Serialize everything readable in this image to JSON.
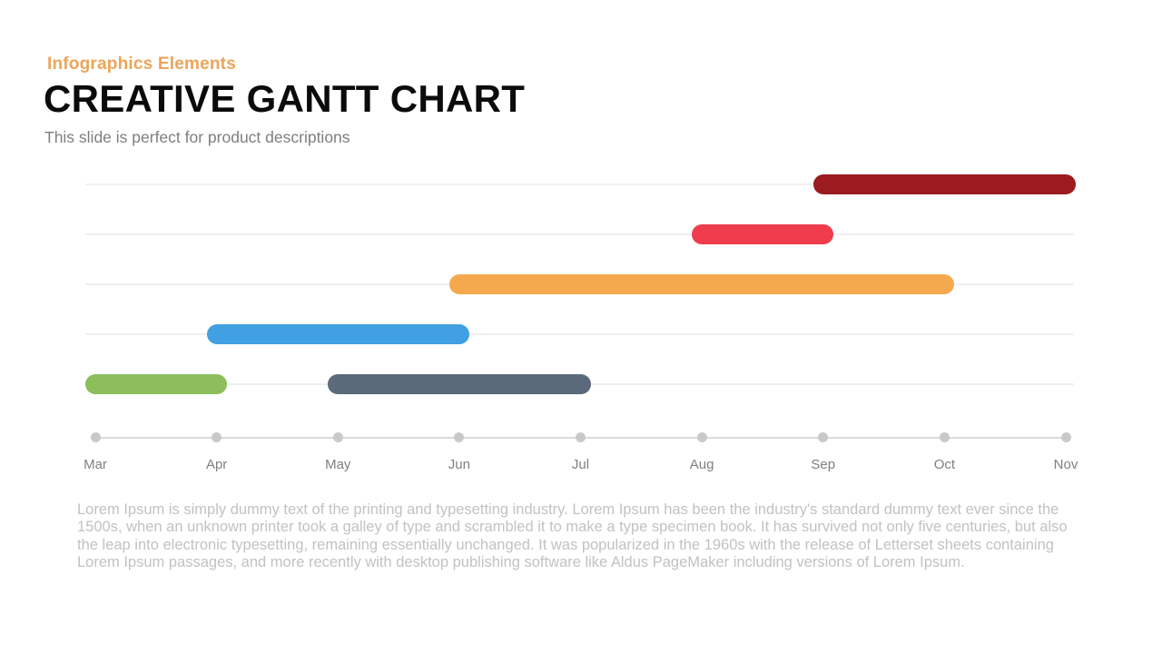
{
  "header": {
    "eyebrow": "Infographics Elements",
    "title": "CREATIVE GANTT CHART",
    "subtitle": "This slide is perfect for product descriptions"
  },
  "chart_data": {
    "type": "gantt",
    "timeline_months": [
      "Mar",
      "Apr",
      "May",
      "Jun",
      "Jul",
      "Aug",
      "Sep",
      "Oct",
      "Nov"
    ],
    "rows": 5,
    "grid": true,
    "legend": "none",
    "bars": [
      {
        "row": 1,
        "start": "Sep",
        "end": "Nov",
        "color": "#9B1B1E"
      },
      {
        "row": 2,
        "start": "Aug",
        "end": "Sep",
        "color": "#EF3D4E"
      },
      {
        "row": 3,
        "start": "Jun",
        "end": "Oct",
        "color": "#F5A94E"
      },
      {
        "row": 4,
        "start": "Apr",
        "end": "Jun",
        "color": "#41A0E1"
      },
      {
        "row": 5,
        "start": "Mar",
        "end": "Apr",
        "color": "#8CBE5B"
      },
      {
        "row": 5,
        "start": "May",
        "end": "Jul",
        "color": "#5A6A7A"
      }
    ],
    "colors": {
      "gridline": "#F0F0F0",
      "axis_line": "#DBDBDB",
      "axis_dot": "#C9C9C9",
      "axis_label": "#7F7F7F"
    }
  },
  "body_text": "Lorem Ipsum is simply dummy text of the printing and typesetting industry. Lorem Ipsum has been the industry's standard dummy text ever since the 1500s, when an unknown printer took a galley of type and scrambled it to make a type specimen book. It has survived not only five centuries, but also the leap into electronic typesetting, remaining essentially unchanged. It was popularized in the 1960s with the release of Letterset sheets containing Lorem Ipsum passages, and more recently with desktop publishing software like Aldus PageMaker including versions of Lorem Ipsum.",
  "accent_colors": {
    "eyebrow_text": "#ECA55A",
    "title_text": "#0B0B0B",
    "subtitle_text": "#7E7E7E",
    "body_text": "#C2C2C2"
  }
}
